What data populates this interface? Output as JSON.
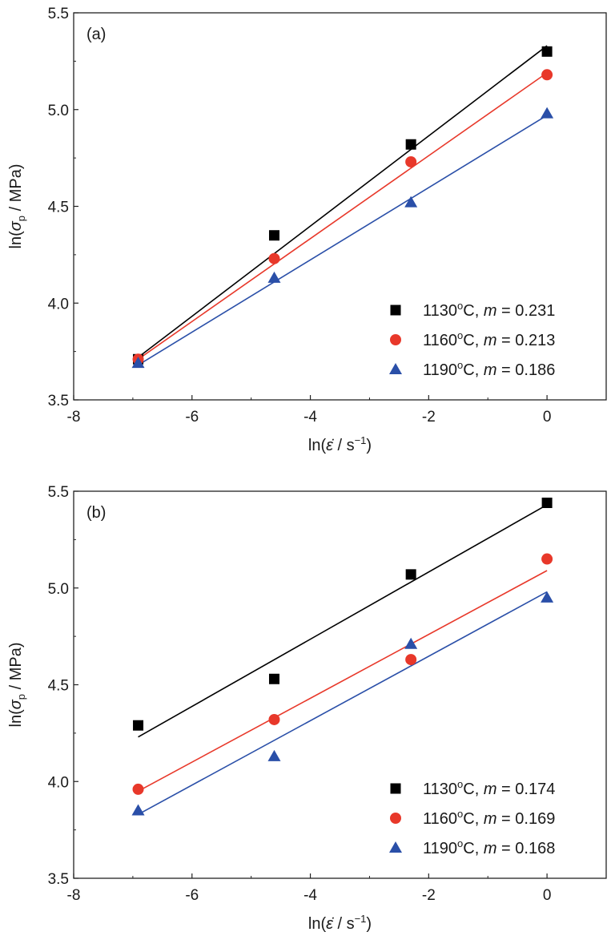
{
  "chart_data": [
    {
      "type": "scatter",
      "panel_label": "(a)",
      "xlabel": "ln(ε̇ / s⁻¹)",
      "ylabel": "ln(σp / MPa)",
      "xlim": [
        -8,
        1
      ],
      "ylim": [
        3.5,
        5.5
      ],
      "x_ticks": [
        "-8",
        "-6",
        "-4",
        "-2",
        "0"
      ],
      "y_ticks": [
        "3.5",
        "4.0",
        "4.5",
        "5.0",
        "5.5"
      ],
      "legend_position": "bottom-right",
      "x": [
        -6.91,
        -4.61,
        -2.3,
        0
      ],
      "series": [
        {
          "name": "1130oC, m = 0.231",
          "temp": "1130",
          "m": "0.231",
          "marker": "square",
          "color": "#000000",
          "values": [
            3.71,
            4.35,
            4.82,
            5.3
          ],
          "fit": [
            3.72,
            5.33
          ]
        },
        {
          "name": "1160oC, m = 0.213",
          "temp": "1160",
          "m": "0.213",
          "marker": "circle",
          "color": "#e8382a",
          "values": [
            3.71,
            4.23,
            4.73,
            5.18
          ],
          "fit": [
            3.71,
            5.19
          ]
        },
        {
          "name": "1190oC, m = 0.186",
          "temp": "1190",
          "m": "0.186",
          "marker": "triangle",
          "color": "#2a4fa8",
          "values": [
            3.69,
            4.13,
            4.52,
            4.98
          ],
          "fit": [
            3.68,
            4.97
          ]
        }
      ]
    },
    {
      "type": "scatter",
      "panel_label": "(b)",
      "xlabel": "ln(ε̇ / s⁻¹)",
      "ylabel": "ln(σp / MPa)",
      "xlim": [
        -8,
        1
      ],
      "ylim": [
        3.5,
        5.5
      ],
      "x_ticks": [
        "-8",
        "-6",
        "-4",
        "-2",
        "0"
      ],
      "y_ticks": [
        "3.5",
        "4.0",
        "4.5",
        "5.0",
        "5.5"
      ],
      "legend_position": "bottom-right",
      "x": [
        -6.91,
        -4.61,
        -2.3,
        0
      ],
      "series": [
        {
          "name": "1130oC, m = 0.174",
          "temp": "1130",
          "m": "0.174",
          "marker": "square",
          "color": "#000000",
          "values": [
            4.29,
            4.53,
            5.07,
            5.44
          ],
          "fit": [
            4.23,
            5.43
          ]
        },
        {
          "name": "1160oC, m = 0.169",
          "temp": "1160",
          "m": "0.169",
          "marker": "circle",
          "color": "#e8382a",
          "values": [
            3.96,
            4.32,
            4.63,
            5.15
          ],
          "fit": [
            3.95,
            5.09
          ]
        },
        {
          "name": "1190oC, m = 0.168",
          "temp": "1190",
          "m": "0.168",
          "marker": "triangle",
          "color": "#2a4fa8",
          "values": [
            3.85,
            4.13,
            4.71,
            4.95
          ],
          "fit": [
            3.83,
            4.98
          ]
        }
      ]
    }
  ]
}
